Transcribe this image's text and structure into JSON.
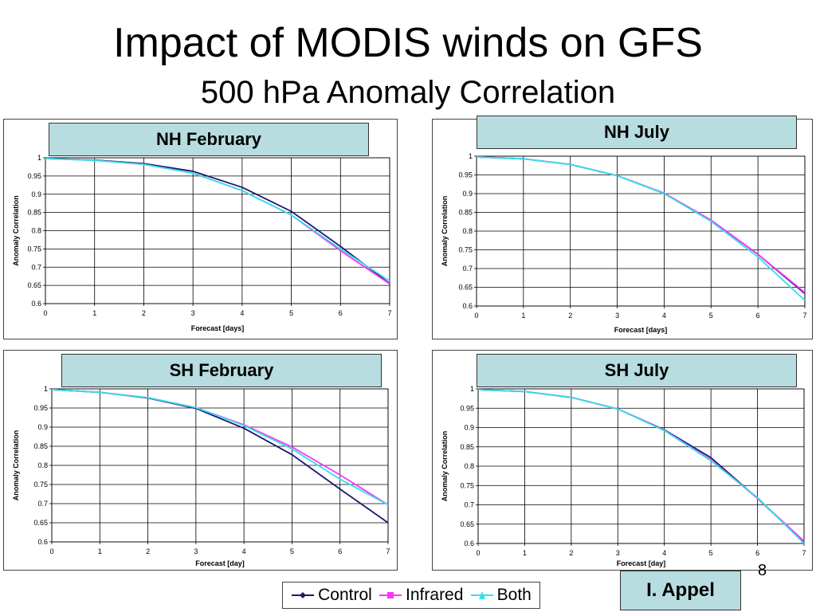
{
  "slide": {
    "title": "Impact of MODIS winds on GFS",
    "subtitle": "500 hPa Anomaly Correlation",
    "author": "I. Appel",
    "page_number": "8"
  },
  "legend": [
    {
      "name": "Control",
      "color": "#1a1a6e"
    },
    {
      "name": "Infrared",
      "color": "#ff33ff"
    },
    {
      "name": "Both",
      "color": "#33e0e8"
    }
  ],
  "chart_data": [
    {
      "type": "line",
      "title": "NH February",
      "xlabel": "Forecast [days]",
      "ylabel": "Anomaly Correlation",
      "x": [
        0,
        1,
        2,
        3,
        4,
        5,
        6,
        7
      ],
      "xlim": [
        0,
        7
      ],
      "ylim": [
        0.6,
        1
      ],
      "yticks": [
        "0.6",
        "0.65",
        "0.7",
        "0.75",
        "0.8",
        "0.85",
        "0.9",
        "0.95",
        "1"
      ],
      "xticks": [
        "0",
        "1",
        "2",
        "3",
        "4",
        "5",
        "6",
        "7"
      ],
      "grid": true,
      "series": [
        {
          "name": "Control",
          "values": [
            0.998,
            0.994,
            0.984,
            0.963,
            0.919,
            0.853,
            0.757,
            0.655
          ]
        },
        {
          "name": "Infrared",
          "values": [
            0.998,
            0.993,
            0.982,
            0.958,
            0.91,
            0.843,
            0.745,
            0.654
          ]
        },
        {
          "name": "Both",
          "values": [
            0.998,
            0.993,
            0.982,
            0.958,
            0.91,
            0.843,
            0.75,
            0.662
          ]
        }
      ]
    },
    {
      "type": "line",
      "title": "NH July",
      "xlabel": "Forecast [days]",
      "ylabel": "Anomaly Correlation",
      "x": [
        0,
        1,
        2,
        3,
        4,
        5,
        6,
        7
      ],
      "xlim": [
        0,
        7
      ],
      "ylim": [
        0.6,
        1
      ],
      "yticks": [
        "0.6",
        "0.65",
        "0.7",
        "0.75",
        "0.8",
        "0.85",
        "0.9",
        "0.95",
        "1"
      ],
      "xticks": [
        "0",
        "1",
        "2",
        "3",
        "4",
        "5",
        "6",
        "7"
      ],
      "grid": true,
      "series": [
        {
          "name": "Control",
          "values": [
            0.998,
            0.993,
            0.978,
            0.948,
            0.901,
            0.829,
            0.738,
            0.633
          ]
        },
        {
          "name": "Infrared",
          "values": [
            0.998,
            0.993,
            0.978,
            0.948,
            0.901,
            0.829,
            0.738,
            0.636
          ]
        },
        {
          "name": "Both",
          "values": [
            0.998,
            0.993,
            0.978,
            0.948,
            0.9,
            0.826,
            0.731,
            0.615
          ]
        }
      ]
    },
    {
      "type": "line",
      "title": "SH February",
      "xlabel": "Forecast [day]",
      "ylabel": "Anomaly Correlation",
      "x": [
        0,
        1,
        2,
        3,
        4,
        5,
        6,
        7
      ],
      "xlim": [
        0,
        7
      ],
      "ylim": [
        0.6,
        1
      ],
      "yticks": [
        "0.6",
        "0.65",
        "0.7",
        "0.75",
        "0.8",
        "0.85",
        "0.9",
        "0.95",
        "1"
      ],
      "xticks": [
        "0",
        "1",
        "2",
        "3",
        "4",
        "5",
        "6",
        "7"
      ],
      "grid": true,
      "series": [
        {
          "name": "Control",
          "values": [
            0.998,
            0.991,
            0.976,
            0.949,
            0.897,
            0.828,
            0.738,
            0.65
          ]
        },
        {
          "name": "Infrared",
          "values": [
            0.998,
            0.991,
            0.977,
            0.951,
            0.906,
            0.848,
            0.775,
            0.697
          ]
        },
        {
          "name": "Both",
          "values": [
            0.998,
            0.991,
            0.977,
            0.951,
            0.904,
            0.843,
            0.764,
            0.697
          ]
        }
      ]
    },
    {
      "type": "line",
      "title": "SH July",
      "xlabel": "Forecast [day]",
      "ylabel": "Anomaly Correlation",
      "x": [
        0,
        1,
        2,
        3,
        4,
        5,
        6,
        7
      ],
      "xlim": [
        0,
        7
      ],
      "ylim": [
        0.6,
        1
      ],
      "yticks": [
        "0.6",
        "0.65",
        "0.7",
        "0.75",
        "0.8",
        "0.85",
        "0.9",
        "0.95",
        "1"
      ],
      "xticks": [
        "0",
        "1",
        "2",
        "3",
        "4",
        "5",
        "6",
        "7"
      ],
      "grid": true,
      "series": [
        {
          "name": "Control",
          "values": [
            0.998,
            0.993,
            0.978,
            0.948,
            0.894,
            0.822,
            0.717,
            0.603
          ]
        },
        {
          "name": "Infrared",
          "values": [
            0.998,
            0.993,
            0.978,
            0.948,
            0.893,
            0.816,
            0.717,
            0.606
          ]
        },
        {
          "name": "Both",
          "values": [
            0.998,
            0.993,
            0.978,
            0.948,
            0.892,
            0.814,
            0.719,
            0.6
          ]
        }
      ]
    }
  ]
}
